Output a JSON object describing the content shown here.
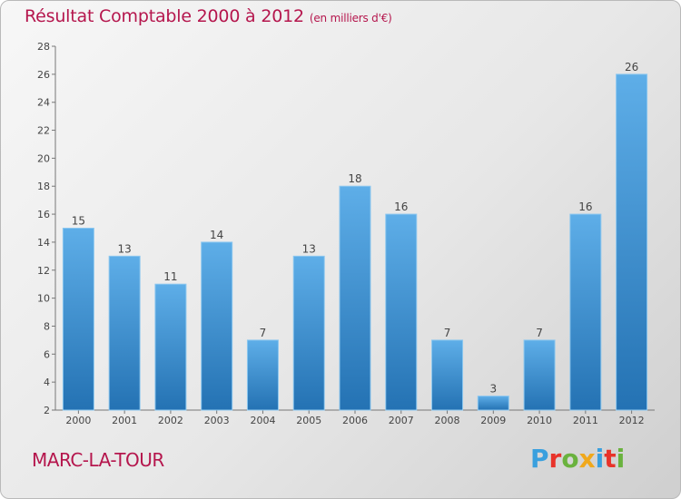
{
  "header": {
    "title": "Résultat Comptable 2000 à 2012",
    "subtitle": "(en milliers d'€)"
  },
  "footer": {
    "town": "MARC-LA-TOUR",
    "brand": "Proxiti"
  },
  "colors": {
    "title": "#b5164d",
    "bar_top": "#5eaee8",
    "bar_bottom": "#2472b3",
    "brand_letters": [
      "#3aa0de",
      "#e8332a",
      "#6ab23e",
      "#f0a81c",
      "#3aa0de",
      "#e8332a",
      "#6ab23e"
    ]
  },
  "chart_data": {
    "type": "bar",
    "title": "Résultat Comptable 2000 à 2012",
    "ylabel": "en milliers d'€",
    "xlabel": "",
    "categories": [
      "2000",
      "2001",
      "2002",
      "2003",
      "2004",
      "2005",
      "2006",
      "2007",
      "2008",
      "2009",
      "2010",
      "2011",
      "2012"
    ],
    "values": [
      15,
      13,
      11,
      14,
      7,
      13,
      18,
      16,
      7,
      3,
      7,
      16,
      26
    ],
    "ylim": [
      2,
      28
    ],
    "yticks": [
      2,
      4,
      6,
      8,
      10,
      12,
      14,
      16,
      18,
      20,
      22,
      24,
      26,
      28
    ],
    "grid": false
  }
}
